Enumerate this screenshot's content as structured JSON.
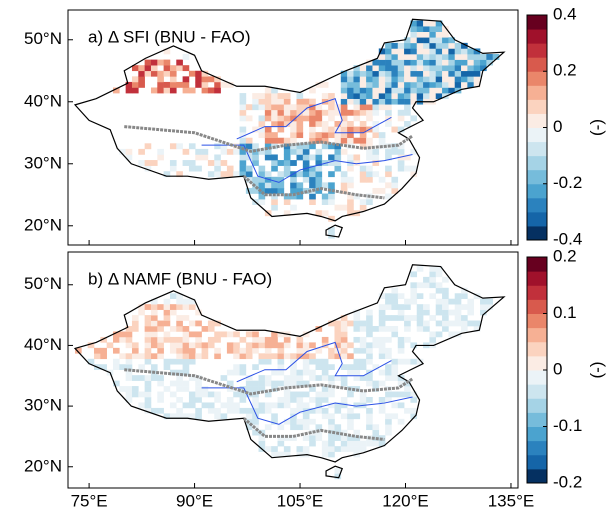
{
  "panels": [
    {
      "title": "a) Δ  SFI (BNU - FAO)",
      "latlim": [
        16.9,
        54.8
      ],
      "lat_ticks": [
        {
          "value": 20,
          "label": "20°N"
        },
        {
          "value": 30,
          "label": "30°N"
        },
        {
          "value": 40,
          "label": "40°N"
        },
        {
          "value": 50,
          "label": "50°N"
        }
      ],
      "colorbar": {
        "lim": [
          -0.4,
          0.4
        ],
        "ticks": [
          -0.4,
          -0.2,
          0,
          0.2,
          0.4
        ],
        "unit": "(-)",
        "colors": [
          "#053061",
          "#1565a8",
          "#2b82be",
          "#4ba3cf",
          "#76bcdb",
          "#a5d3e6",
          "#cde5ef",
          "#ebf3f7",
          "#fbece4",
          "#fbd3bf",
          "#f6b094",
          "#ea866a",
          "#d85a4d",
          "#c1303b",
          "#a0112b",
          "#67001f"
        ]
      }
    },
    {
      "title": "b) Δ  NAMF (BNU - FAO)",
      "latlim": [
        16.5,
        55.4
      ],
      "lat_ticks": [
        {
          "value": 20,
          "label": "20°N"
        },
        {
          "value": 30,
          "label": "30°N"
        },
        {
          "value": 40,
          "label": "40°N"
        },
        {
          "value": 50,
          "label": "50°N"
        }
      ],
      "colorbar": {
        "lim": [
          -0.2,
          0.2
        ],
        "ticks": [
          -0.2,
          -0.1,
          0,
          0.1,
          0.2
        ],
        "unit": "(-)",
        "colors": [
          "#053061",
          "#1565a8",
          "#2b82be",
          "#4ba3cf",
          "#76bcdb",
          "#a5d3e6",
          "#cde5ef",
          "#ebf3f7",
          "#fbece4",
          "#fbd3bf",
          "#f6b094",
          "#ea866a",
          "#d85a4d",
          "#c1303b",
          "#a0112b",
          "#67001f"
        ]
      }
    }
  ],
  "lonlim": [
    72,
    136
  ],
  "lon_ticks": [
    {
      "value": 75,
      "label": "75°E"
    },
    {
      "value": 90,
      "label": "90°E"
    },
    {
      "value": 105,
      "label": "105°E"
    },
    {
      "value": 120,
      "label": "120°E"
    },
    {
      "value": 135,
      "label": "135°E"
    }
  ]
}
